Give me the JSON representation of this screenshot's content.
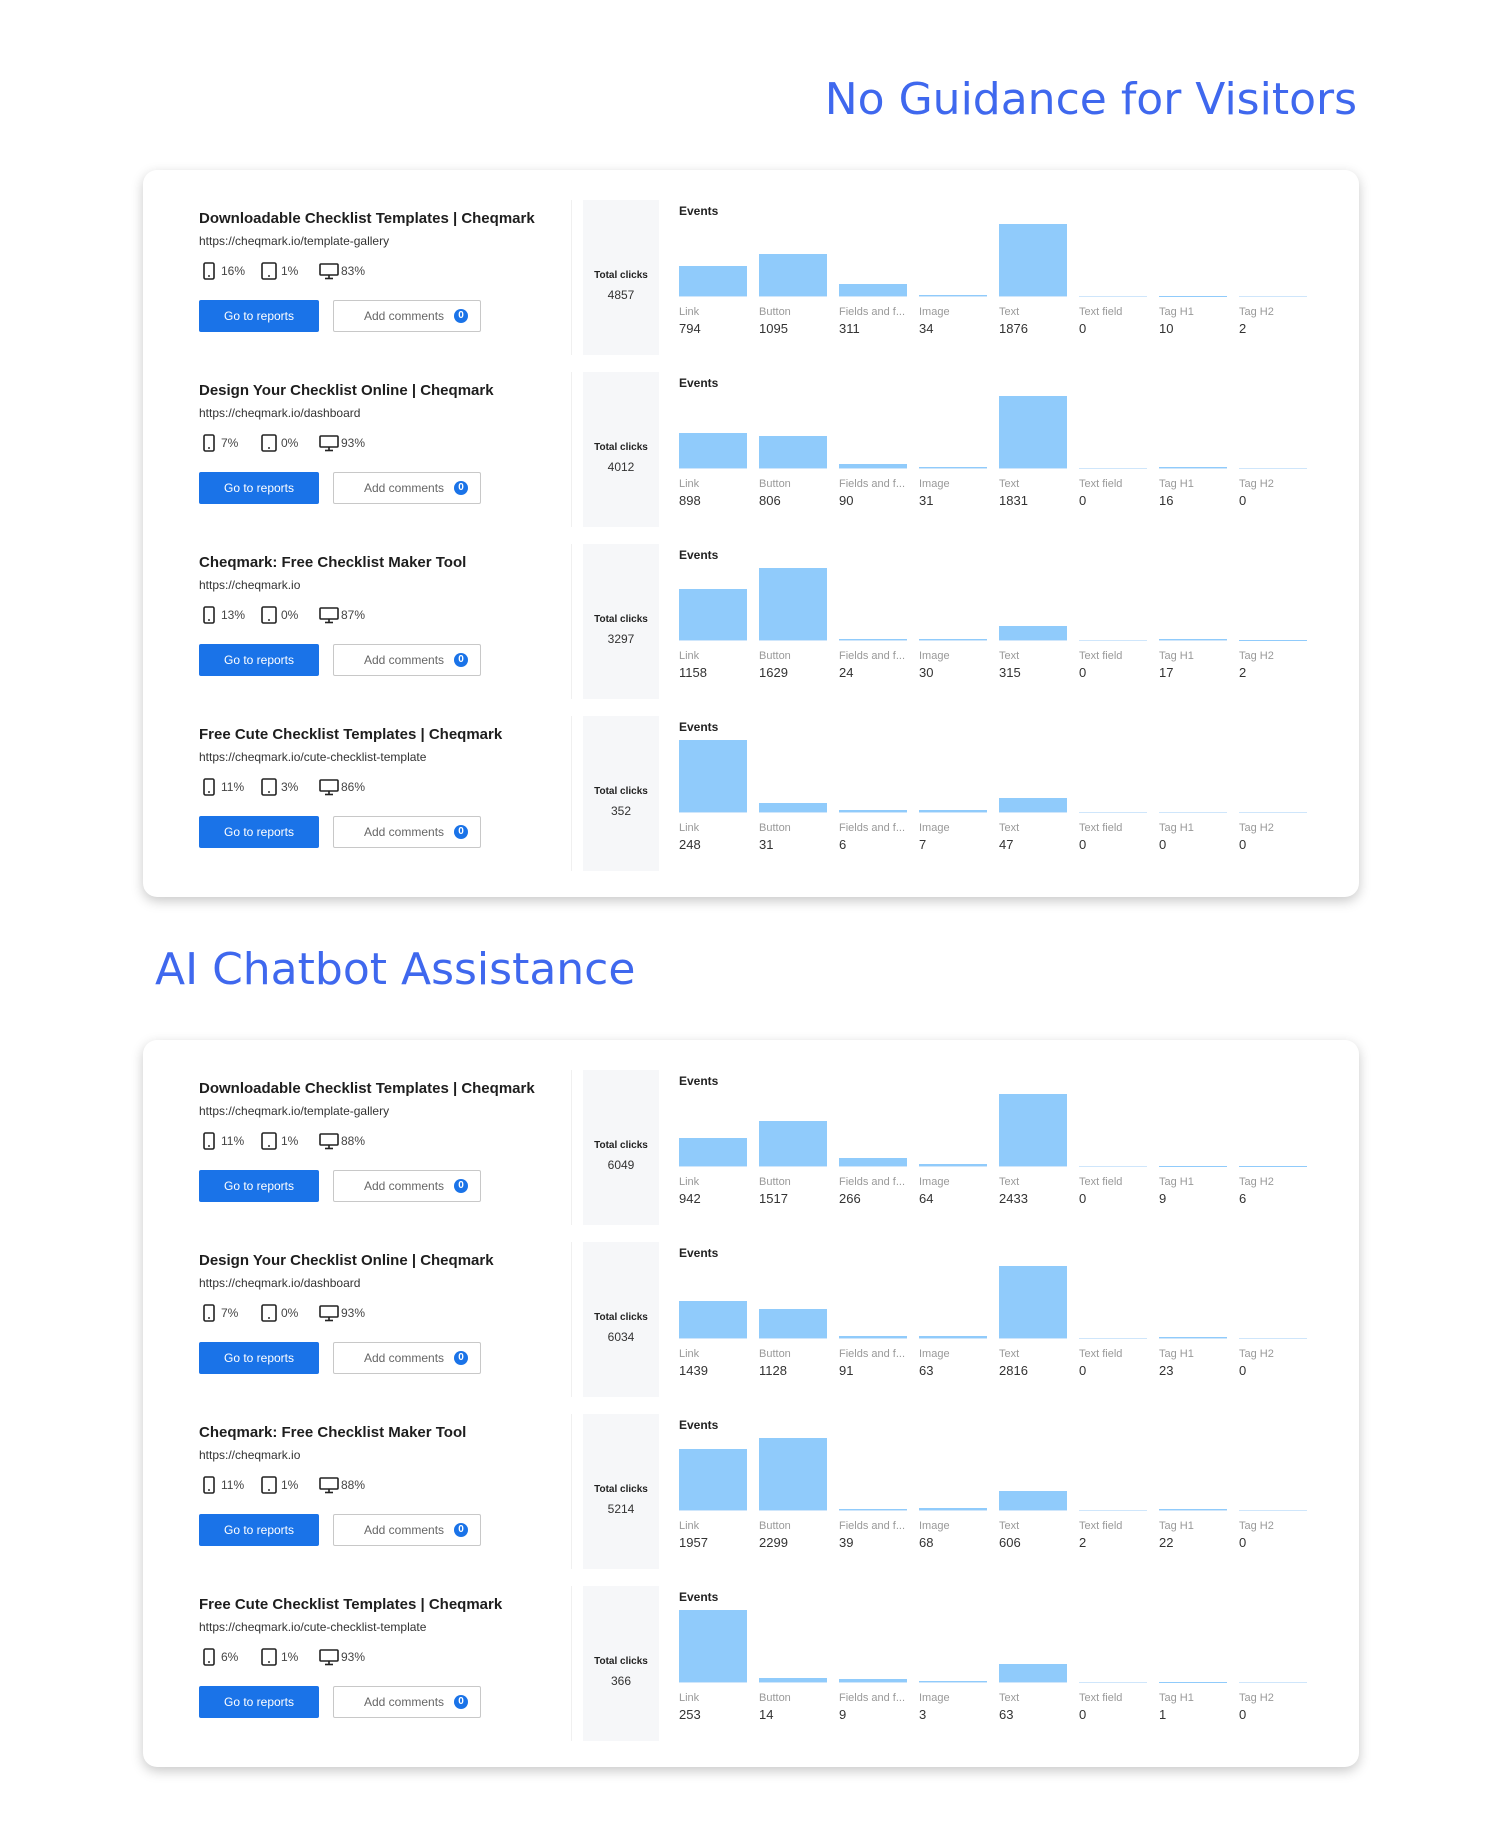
{
  "labels": {
    "go_to_reports": "Go to reports",
    "add_comments": "Add comments",
    "comment_count": 0,
    "total_clicks": "Total clicks",
    "events": "Events",
    "categories": [
      "Link",
      "Button",
      "Fields and f...",
      "Image",
      "Text",
      "Text field",
      "Tag H1",
      "Tag H2"
    ]
  },
  "sections": [
    {
      "title": "No Guidance for Visitors",
      "rows": [
        {
          "title": "Downloadable Checklist Templates | Cheqmark",
          "url": "https://cheqmark.io/template-gallery",
          "devices": [
            "16%",
            "1%",
            "83%"
          ],
          "total": 4857,
          "events": [
            794,
            1095,
            311,
            34,
            1876,
            0,
            10,
            2
          ]
        },
        {
          "title": "Design Your Checklist Online | Cheqmark",
          "url": "https://cheqmark.io/dashboard",
          "devices": [
            "7%",
            "0%",
            "93%"
          ],
          "total": 4012,
          "events": [
            898,
            806,
            90,
            31,
            1831,
            0,
            16,
            0
          ]
        },
        {
          "title": "Cheqmark: Free Checklist Maker Tool",
          "url": "https://cheqmark.io",
          "devices": [
            "13%",
            "0%",
            "87%"
          ],
          "total": 3297,
          "events": [
            1158,
            1629,
            24,
            30,
            315,
            0,
            17,
            2
          ]
        },
        {
          "title": "Free Cute Checklist Templates | Cheqmark",
          "url": "https://cheqmark.io/cute-checklist-template",
          "devices": [
            "11%",
            "3%",
            "86%"
          ],
          "total": 352,
          "events": [
            248,
            31,
            6,
            7,
            47,
            0,
            0,
            0
          ]
        }
      ]
    },
    {
      "title": "AI Chatbot Assistance",
      "rows": [
        {
          "title": "Downloadable Checklist Templates | Cheqmark",
          "url": "https://cheqmark.io/template-gallery",
          "devices": [
            "11%",
            "1%",
            "88%"
          ],
          "total": 6049,
          "events": [
            942,
            1517,
            266,
            64,
            2433,
            0,
            9,
            6
          ]
        },
        {
          "title": "Design Your Checklist Online | Cheqmark",
          "url": "https://cheqmark.io/dashboard",
          "devices": [
            "7%",
            "0%",
            "93%"
          ],
          "total": 6034,
          "events": [
            1439,
            1128,
            91,
            63,
            2816,
            0,
            23,
            0
          ]
        },
        {
          "title": "Cheqmark: Free Checklist Maker Tool",
          "url": "https://cheqmark.io",
          "devices": [
            "11%",
            "1%",
            "88%"
          ],
          "total": 5214,
          "events": [
            1957,
            2299,
            39,
            68,
            606,
            2,
            22,
            0
          ]
        },
        {
          "title": "Free Cute Checklist Templates | Cheqmark",
          "url": "https://cheqmark.io/cute-checklist-template",
          "devices": [
            "6%",
            "1%",
            "93%"
          ],
          "total": 366,
          "events": [
            253,
            14,
            9,
            3,
            63,
            0,
            1,
            0
          ]
        }
      ]
    }
  ]
}
